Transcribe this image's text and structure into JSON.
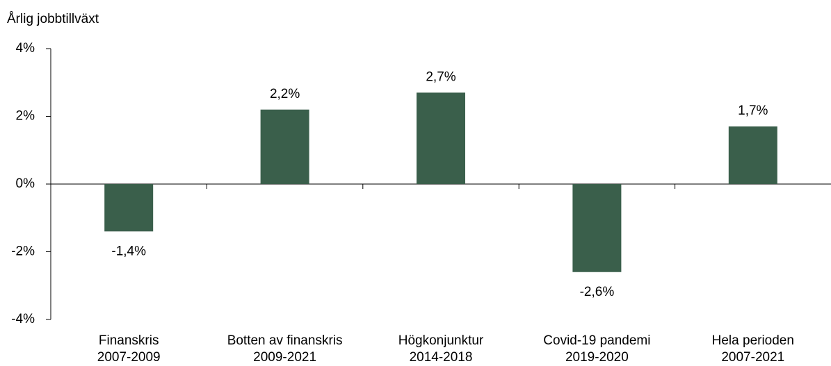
{
  "chart_data": {
    "type": "bar",
    "y_axis_label": "Årlig jobbtillväxt",
    "categories": [
      "Finanskris\n2007-2009",
      "Botten av finanskris\n2009-2021",
      "Högkonjunktur\n2014-2018",
      "Covid-19 pandemi\n2019-2020",
      "Hela perioden\n2007-2021"
    ],
    "values": [
      -1.4,
      2.2,
      2.7,
      -2.6,
      1.7
    ],
    "value_labels": [
      "-1,4%",
      "2,2%",
      "2,7%",
      "-2,6%",
      "1,7%"
    ],
    "color": "#3a5f4b",
    "ylim": [
      -4,
      4
    ],
    "yticks": [
      {
        "value": -4,
        "label": "-4%"
      },
      {
        "value": -2,
        "label": "-2%"
      },
      {
        "value": 0,
        "label": "0%"
      },
      {
        "value": 2,
        "label": "2%"
      },
      {
        "value": 4,
        "label": "4%"
      }
    ],
    "grid": false
  }
}
